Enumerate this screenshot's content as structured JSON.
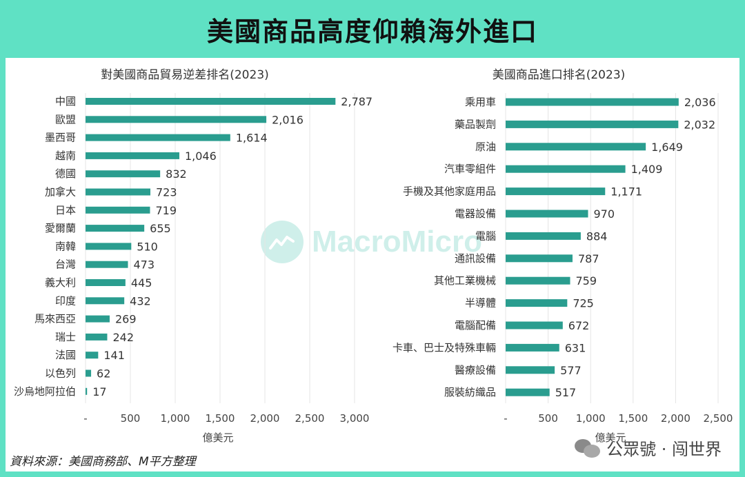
{
  "title": "美國商品高度仰賴海外進口",
  "footer": "資料來源：美國商務部、M平方整理",
  "watermark": "公眾號 · 闯世界",
  "logo_text": "MacroMicro",
  "colors": {
    "bar": "#2a9d8f",
    "background": "#5fe1c4"
  },
  "chart_data": [
    {
      "type": "bar",
      "orientation": "horizontal",
      "title": "對美國商品貿易逆差排名(2023)",
      "xlabel": "億美元",
      "xlim": [
        0,
        3000
      ],
      "xticks": [
        0,
        500,
        1000,
        1500,
        2000,
        2500,
        3000
      ],
      "xtick_labels": [
        "-",
        "500",
        "1,000",
        "1,500",
        "2,000",
        "2,500",
        "3,000"
      ],
      "categories": [
        "中國",
        "歐盟",
        "墨西哥",
        "越南",
        "德國",
        "加拿大",
        "日本",
        "愛爾蘭",
        "南韓",
        "台灣",
        "義大利",
        "印度",
        "馬來西亞",
        "瑞士",
        "法國",
        "以色列",
        "沙烏地阿拉伯"
      ],
      "values": [
        2787,
        2016,
        1614,
        1046,
        832,
        723,
        719,
        655,
        510,
        473,
        445,
        432,
        269,
        242,
        141,
        62,
        17
      ],
      "value_labels": [
        "2,787",
        "2,016",
        "1,614",
        "1,046",
        "832",
        "723",
        "719",
        "655",
        "510",
        "473",
        "445",
        "432",
        "269",
        "242",
        "141",
        "62",
        "17"
      ]
    },
    {
      "type": "bar",
      "orientation": "horizontal",
      "title": "美國商品進口排名(2023)",
      "xlabel": "億美元",
      "xlim": [
        0,
        2500
      ],
      "xticks": [
        0,
        500,
        1000,
        1500,
        2000,
        2500
      ],
      "xtick_labels": [
        "-",
        "500",
        "1,000",
        "1,500",
        "2,000",
        "2,500"
      ],
      "categories": [
        "乘用車",
        "藥品製劑",
        "原油",
        "汽車零組件",
        "手機及其他家庭用品",
        "電器設備",
        "電腦",
        "通訊設備",
        "其他工業機械",
        "半導體",
        "電腦配備",
        "卡車、巴士及特殊車輛",
        "醫療設備",
        "服裝紡織品"
      ],
      "values": [
        2036,
        2032,
        1649,
        1409,
        1171,
        970,
        884,
        787,
        759,
        725,
        672,
        631,
        577,
        517
      ],
      "value_labels": [
        "2,036",
        "2,032",
        "1,649",
        "1,409",
        "1,171",
        "970",
        "884",
        "787",
        "759",
        "725",
        "672",
        "631",
        "577",
        "517"
      ]
    }
  ]
}
